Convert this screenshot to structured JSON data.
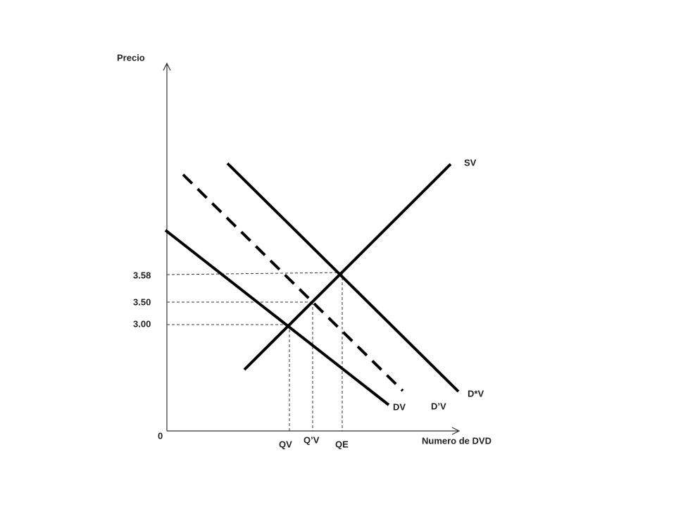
{
  "axes": {
    "y_label": "Precio",
    "x_label": "Numero de DVD",
    "origin": "0"
  },
  "price_labels": [
    "3.58",
    "3.50",
    "3.00"
  ],
  "quantity_labels": [
    "QV",
    "Q’V",
    "QE"
  ],
  "curves": [
    "SV",
    "D*V",
    "D’V",
    "DV"
  ]
}
